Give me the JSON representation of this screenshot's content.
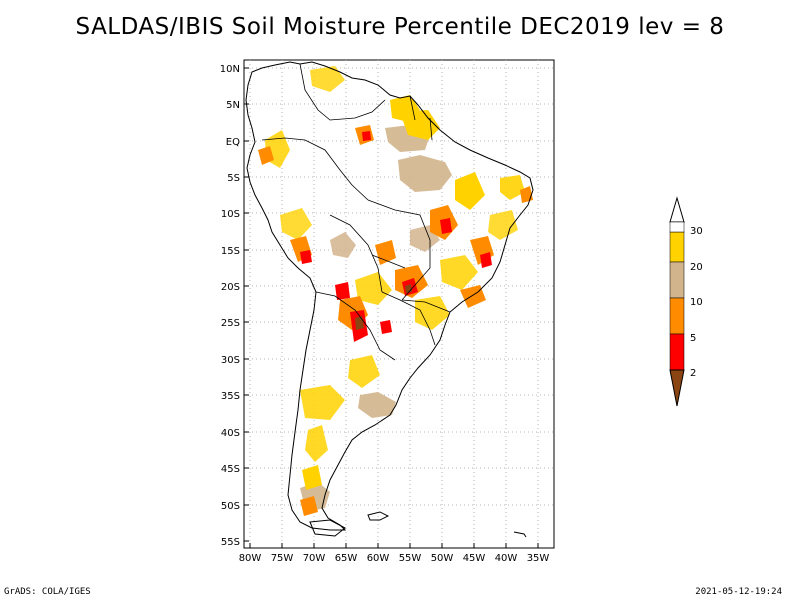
{
  "title": "SALDAS/IBIS Soil Moisture Percentile DEC2019 lev = 8",
  "credit": "GrADS: COLA/IGES",
  "timestamp": "2021-05-12-19:24",
  "lat_ticks": [
    "10N",
    "5N",
    "EQ",
    "5S",
    "10S",
    "15S",
    "20S",
    "25S",
    "30S",
    "35S",
    "40S",
    "45S",
    "50S",
    "55S"
  ],
  "lon_ticks": [
    "80W",
    "75W",
    "70W",
    "65W",
    "60W",
    "55W",
    "50W",
    "45W",
    "40W",
    "35W"
  ],
  "legend": {
    "labels": [
      "30",
      "20",
      "10",
      "5",
      "2"
    ],
    "colors": {
      "above30": "#ffffff",
      "p20_30": "#ffd200",
      "p10_20": "#d2b48c",
      "p5_10": "#ff8c00",
      "p2_5": "#ff0000",
      "below2": "#8b4513"
    }
  },
  "colors": {
    "coast": "#000000",
    "grid": "#b4b4b4"
  }
}
